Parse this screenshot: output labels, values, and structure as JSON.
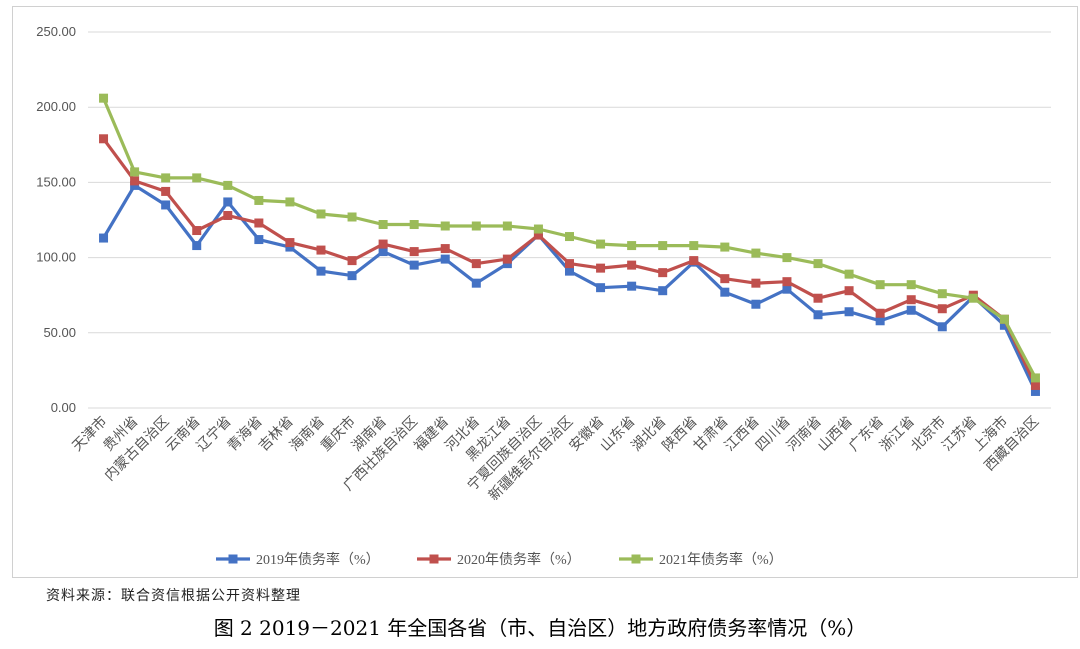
{
  "chart_data": {
    "type": "line",
    "title": "",
    "xlabel": "",
    "ylabel": "",
    "ylim": [
      0,
      250
    ],
    "yticks": [
      "0.00",
      "50.00",
      "100.00",
      "150.00",
      "200.00",
      "250.00"
    ],
    "grid": true,
    "legend_position": "bottom",
    "categories": [
      "天津市",
      "贵州省",
      "内蒙古自治区",
      "云南省",
      "辽宁省",
      "青海省",
      "吉林省",
      "海南省",
      "重庆市",
      "湖南省",
      "广西壮族自治区",
      "福建省",
      "河北省",
      "黑龙江省",
      "宁夏回族自治区",
      "新疆维吾尔自治区",
      "安徽省",
      "山东省",
      "湖北省",
      "陕西省",
      "甘肃省",
      "江西省",
      "四川省",
      "河南省",
      "山西省",
      "广东省",
      "浙江省",
      "北京市",
      "江苏省",
      "上海市",
      "西藏自治区"
    ],
    "series": [
      {
        "name": "2019年债务率（%）",
        "color": "#4472C4",
        "values": [
          113,
          148,
          135,
          108,
          137,
          112,
          107,
          91,
          88,
          104,
          95,
          99,
          83,
          96,
          115,
          91,
          80,
          81,
          78,
          97,
          77,
          69,
          79,
          62,
          64,
          58,
          65,
          54,
          74,
          55,
          11
        ]
      },
      {
        "name": "2020年债务率（%）",
        "color": "#C0504D",
        "values": [
          179,
          151,
          144,
          118,
          128,
          123,
          110,
          105,
          98,
          109,
          104,
          106,
          96,
          99,
          115,
          96,
          93,
          95,
          90,
          98,
          86,
          83,
          84,
          73,
          78,
          63,
          72,
          66,
          75,
          59,
          15
        ]
      },
      {
        "name": "2021年债务率（%）",
        "color": "#9BBB59",
        "values": [
          206,
          157,
          153,
          153,
          148,
          138,
          137,
          129,
          127,
          122,
          122,
          121,
          121,
          121,
          119,
          114,
          109,
          108,
          108,
          108,
          107,
          103,
          100,
          96,
          89,
          82,
          82,
          76,
          73,
          59,
          20
        ]
      }
    ]
  },
  "source_note": "资料来源：联合资信根据公开资料整理",
  "caption": "图 2    2019－2021 年全国各省（市、自治区）地方政府债务率情况（%）"
}
